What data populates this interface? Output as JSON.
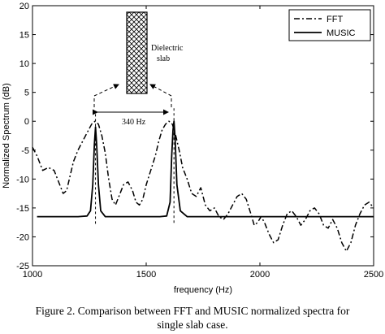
{
  "chart_data": {
    "type": "line",
    "xlabel": "frequency (Hz)",
    "ylabel": "Normalized Spectrum (dB)",
    "xlim": [
      1000,
      2500
    ],
    "ylim": [
      -25,
      20
    ],
    "xticks": [
      1000,
      1500,
      2000,
      2500
    ],
    "yticks": [
      -25,
      -20,
      -15,
      -10,
      -5,
      0,
      5,
      10,
      15,
      20
    ],
    "grid": false,
    "legend_position": "top-right",
    "series": [
      {
        "name": "FFT",
        "style": "dash-dot",
        "x": [
          1000,
          1020,
          1045,
          1070,
          1095,
          1115,
          1135,
          1150,
          1165,
          1180,
          1200,
          1220,
          1240,
          1260,
          1275,
          1290,
          1305,
          1320,
          1335,
          1350,
          1365,
          1380,
          1400,
          1420,
          1440,
          1455,
          1470,
          1485,
          1500,
          1520,
          1540,
          1555,
          1570,
          1585,
          1600,
          1615,
          1630,
          1645,
          1660,
          1680,
          1700,
          1720,
          1740,
          1760,
          1780,
          1800,
          1820,
          1840,
          1860,
          1880,
          1900,
          1920,
          1940,
          1960,
          1975,
          1990,
          2005,
          2020,
          2040,
          2060,
          2080,
          2100,
          2120,
          2140,
          2160,
          2180,
          2200,
          2220,
          2240,
          2260,
          2280,
          2300,
          2320,
          2340,
          2360,
          2380,
          2400,
          2420,
          2440,
          2460,
          2480,
          2500
        ],
        "y": [
          -4.5,
          -6.0,
          -8.5,
          -8.0,
          -8.5,
          -10.5,
          -12.5,
          -12.0,
          -9.5,
          -7.0,
          -5.0,
          -3.5,
          -2.0,
          -0.5,
          0.0,
          -0.5,
          -2.5,
          -5.5,
          -10.0,
          -13.5,
          -14.5,
          -13.0,
          -11.0,
          -10.5,
          -12.0,
          -14.0,
          -14.5,
          -13.5,
          -11.0,
          -8.5,
          -6.0,
          -3.5,
          -1.5,
          -0.5,
          0.0,
          -0.5,
          -2.5,
          -5.0,
          -8.0,
          -10.0,
          -12.5,
          -13.0,
          -11.5,
          -14.5,
          -15.5,
          -15.0,
          -16.5,
          -17.0,
          -16.0,
          -14.5,
          -13.0,
          -12.5,
          -13.5,
          -16.0,
          -18.0,
          -17.5,
          -16.5,
          -17.5,
          -19.5,
          -21.0,
          -20.5,
          -18.0,
          -16.0,
          -15.5,
          -16.5,
          -18.0,
          -17.0,
          -15.5,
          -15.0,
          -16.0,
          -18.0,
          -18.5,
          -17.0,
          -18.5,
          -21.0,
          -22.5,
          -21.0,
          -18.0,
          -16.0,
          -14.5,
          -14.0,
          -15.0
        ]
      },
      {
        "name": "MUSIC",
        "style": "solid",
        "x": [
          1020,
          1200,
          1240,
          1255,
          1265,
          1272,
          1277,
          1282,
          1290,
          1300,
          1320,
          1560,
          1590,
          1605,
          1612,
          1618,
          1622,
          1627,
          1635,
          1650,
          1680,
          2500
        ],
        "y": [
          -16.5,
          -16.5,
          -16.4,
          -15.5,
          -11.0,
          -4.0,
          -1.0,
          -4.0,
          -11.0,
          -15.5,
          -16.5,
          -16.5,
          -16.4,
          -14.0,
          -6.0,
          -1.5,
          0.0,
          -3.0,
          -11.0,
          -15.5,
          -16.5,
          -16.5
        ]
      }
    ],
    "annotations": {
      "slab_label_line1": "Dielectric",
      "slab_label_line2": "slab",
      "spacing_label": "340 Hz"
    },
    "colors": {
      "line": "#000000",
      "background": "#ffffff"
    }
  },
  "caption": {
    "line1": "Figure 2.    Comparison between FFT and MUSIC normalized spectra for",
    "line2": "single slab case."
  }
}
